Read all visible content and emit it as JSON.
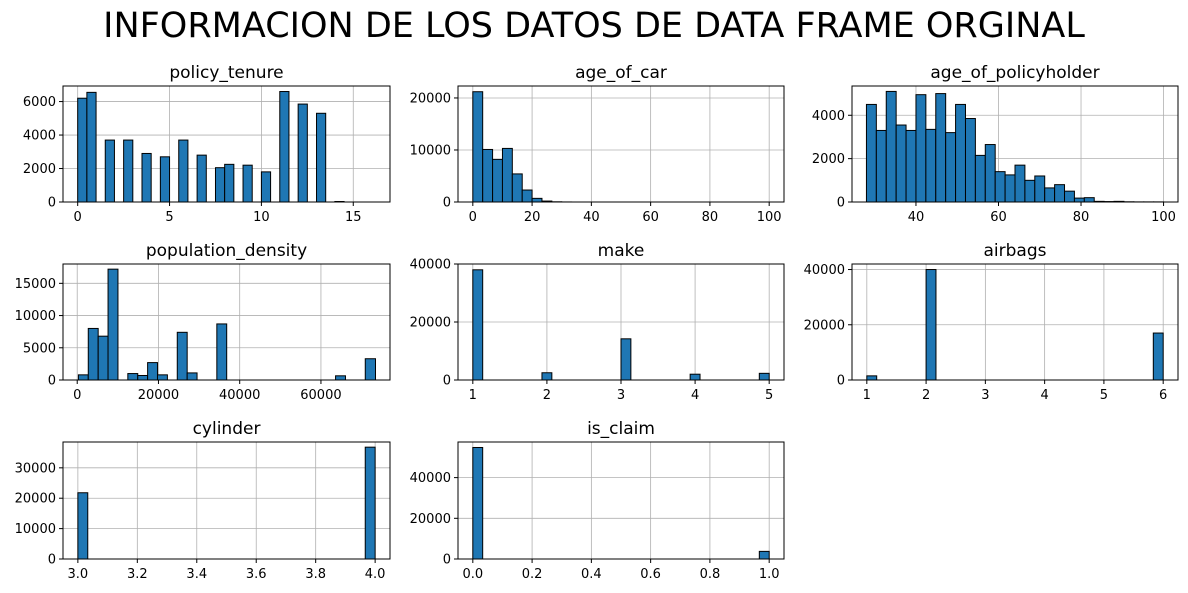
{
  "figure": {
    "title": "INFORMACION DE LOS DATOS DE DATA FRAME ORGINAL",
    "bar_color": "#1f77b4",
    "edge_color": "#000000",
    "grid_color": "#b0b0b0"
  },
  "chart_data": [
    {
      "type": "bar",
      "title": "policy_tenure",
      "xlim": [
        -0.8,
        17.0
      ],
      "ylim": [
        0,
        6930
      ],
      "xticks": [
        0,
        5,
        10,
        15
      ],
      "xtick_labels": [
        "0",
        "5",
        "10",
        "15"
      ],
      "yticks": [
        0,
        2000,
        4000,
        6000
      ],
      "ytick_labels": [
        "0",
        "2000",
        "4000",
        "6000"
      ],
      "bars": [
        {
          "x0": 0.0,
          "x1": 0.5,
          "y": 6200
        },
        {
          "x0": 0.5,
          "x1": 1.0,
          "y": 6550
        },
        {
          "x0": 1.5,
          "x1": 2.0,
          "y": 3700
        },
        {
          "x0": 2.5,
          "x1": 3.0,
          "y": 3700
        },
        {
          "x0": 3.5,
          "x1": 4.0,
          "y": 2900
        },
        {
          "x0": 4.5,
          "x1": 5.0,
          "y": 2700
        },
        {
          "x0": 5.5,
          "x1": 6.0,
          "y": 3700
        },
        {
          "x0": 6.5,
          "x1": 7.0,
          "y": 2800
        },
        {
          "x0": 7.5,
          "x1": 8.0,
          "y": 2050
        },
        {
          "x0": 8.0,
          "x1": 8.5,
          "y": 2250
        },
        {
          "x0": 9.0,
          "x1": 9.5,
          "y": 2200
        },
        {
          "x0": 10.0,
          "x1": 10.5,
          "y": 1800
        },
        {
          "x0": 11.0,
          "x1": 11.5,
          "y": 6600
        },
        {
          "x0": 12.0,
          "x1": 12.5,
          "y": 5850
        },
        {
          "x0": 13.0,
          "x1": 13.5,
          "y": 5300
        },
        {
          "x0": 14.0,
          "x1": 14.5,
          "y": 30
        }
      ]
    },
    {
      "type": "bar",
      "title": "age_of_car",
      "xlim": [
        -5,
        105
      ],
      "ylim": [
        0,
        22300
      ],
      "xticks": [
        0,
        20,
        40,
        60,
        80,
        100
      ],
      "xtick_labels": [
        "0",
        "20",
        "40",
        "60",
        "80",
        "100"
      ],
      "yticks": [
        0,
        10000,
        20000
      ],
      "ytick_labels": [
        "0",
        "10000",
        "20000"
      ],
      "bars": [
        {
          "x0": 0.0,
          "x1": 3.33,
          "y": 21200
        },
        {
          "x0": 3.33,
          "x1": 6.67,
          "y": 10100
        },
        {
          "x0": 6.67,
          "x1": 10.0,
          "y": 8200
        },
        {
          "x0": 10.0,
          "x1": 13.33,
          "y": 10300
        },
        {
          "x0": 13.33,
          "x1": 16.67,
          "y": 5400
        },
        {
          "x0": 16.67,
          "x1": 20.0,
          "y": 2300
        },
        {
          "x0": 20.0,
          "x1": 23.33,
          "y": 700
        },
        {
          "x0": 23.33,
          "x1": 26.67,
          "y": 180
        },
        {
          "x0": 26.67,
          "x1": 30.0,
          "y": 40
        },
        {
          "x0": 30.0,
          "x1": 33.33,
          "y": 10
        }
      ]
    },
    {
      "type": "bar",
      "title": "age_of_policyholder",
      "xlim": [
        24.5,
        103.5
      ],
      "ylim": [
        0,
        5350
      ],
      "xticks": [
        40,
        60,
        80,
        100
      ],
      "xtick_labels": [
        "40",
        "60",
        "80",
        "100"
      ],
      "yticks": [
        0,
        2000,
        4000
      ],
      "ytick_labels": [
        "0",
        "2000",
        "4000"
      ],
      "bars": [
        {
          "x0": 28.0,
          "x1": 30.4,
          "y": 4500
        },
        {
          "x0": 30.4,
          "x1": 32.8,
          "y": 3300
        },
        {
          "x0": 32.8,
          "x1": 35.2,
          "y": 5100
        },
        {
          "x0": 35.2,
          "x1": 37.6,
          "y": 3550
        },
        {
          "x0": 37.6,
          "x1": 40.0,
          "y": 3300
        },
        {
          "x0": 40.0,
          "x1": 42.4,
          "y": 4950
        },
        {
          "x0": 42.4,
          "x1": 44.8,
          "y": 3350
        },
        {
          "x0": 44.8,
          "x1": 47.2,
          "y": 5000
        },
        {
          "x0": 47.2,
          "x1": 49.6,
          "y": 3200
        },
        {
          "x0": 49.6,
          "x1": 52.0,
          "y": 4500
        },
        {
          "x0": 52.0,
          "x1": 54.4,
          "y": 3850
        },
        {
          "x0": 54.4,
          "x1": 56.8,
          "y": 2150
        },
        {
          "x0": 56.8,
          "x1": 59.2,
          "y": 2650
        },
        {
          "x0": 59.2,
          "x1": 61.6,
          "y": 1400
        },
        {
          "x0": 61.6,
          "x1": 64.0,
          "y": 1250
        },
        {
          "x0": 64.0,
          "x1": 66.4,
          "y": 1700
        },
        {
          "x0": 66.4,
          "x1": 68.8,
          "y": 1000
        },
        {
          "x0": 68.8,
          "x1": 71.2,
          "y": 1200
        },
        {
          "x0": 71.2,
          "x1": 73.6,
          "y": 650
        },
        {
          "x0": 73.6,
          "x1": 76.0,
          "y": 800
        },
        {
          "x0": 76.0,
          "x1": 78.4,
          "y": 500
        },
        {
          "x0": 78.4,
          "x1": 80.8,
          "y": 180
        },
        {
          "x0": 80.8,
          "x1": 83.2,
          "y": 200
        },
        {
          "x0": 83.2,
          "x1": 85.6,
          "y": 30
        },
        {
          "x0": 85.6,
          "x1": 88.0,
          "y": 20
        },
        {
          "x0": 88.0,
          "x1": 90.4,
          "y": 30
        },
        {
          "x0": 90.4,
          "x1": 92.8,
          "y": 10
        },
        {
          "x0": 92.8,
          "x1": 95.2,
          "y": 5
        },
        {
          "x0": 95.2,
          "x1": 97.6,
          "y": 5
        },
        {
          "x0": 97.6,
          "x1": 100.0,
          "y": 5
        }
      ]
    },
    {
      "type": "bar",
      "title": "population_density",
      "xlim": [
        -3500,
        77000
      ],
      "ylim": [
        0,
        18000
      ],
      "xticks": [
        0,
        20000,
        40000,
        60000
      ],
      "xtick_labels": [
        "0",
        "20000",
        "40000",
        "60000"
      ],
      "yticks": [
        0,
        5000,
        10000,
        15000
      ],
      "ytick_labels": [
        "0",
        "5000",
        "10000",
        "15000"
      ],
      "bars": [
        {
          "x0": 290,
          "x1": 2720,
          "y": 800
        },
        {
          "x0": 2720,
          "x1": 5160,
          "y": 8000
        },
        {
          "x0": 5160,
          "x1": 7590,
          "y": 6800
        },
        {
          "x0": 7590,
          "x1": 10030,
          "y": 17200
        },
        {
          "x0": 12460,
          "x1": 14900,
          "y": 1000
        },
        {
          "x0": 14900,
          "x1": 17330,
          "y": 700
        },
        {
          "x0": 17330,
          "x1": 19760,
          "y": 2700
        },
        {
          "x0": 19760,
          "x1": 22200,
          "y": 800
        },
        {
          "x0": 24630,
          "x1": 27070,
          "y": 7400
        },
        {
          "x0": 27070,
          "x1": 29500,
          "y": 1100
        },
        {
          "x0": 34370,
          "x1": 36800,
          "y": 8700
        },
        {
          "x0": 63600,
          "x1": 66040,
          "y": 650
        },
        {
          "x0": 70910,
          "x1": 73430,
          "y": 3300
        }
      ]
    },
    {
      "type": "bar",
      "title": "make",
      "xlim": [
        0.8,
        5.2
      ],
      "ylim": [
        0,
        40000
      ],
      "xticks": [
        1,
        2,
        3,
        4,
        5
      ],
      "xtick_labels": [
        "1",
        "2",
        "3",
        "4",
        "5"
      ],
      "yticks": [
        0,
        20000,
        40000
      ],
      "ytick_labels": [
        "0",
        "20000",
        "40000"
      ],
      "bars": [
        {
          "x0": 1.0,
          "x1": 1.1333,
          "y": 38000
        },
        {
          "x0": 1.9333,
          "x1": 2.0667,
          "y": 2500
        },
        {
          "x0": 3.0,
          "x1": 3.1333,
          "y": 14200
        },
        {
          "x0": 3.9333,
          "x1": 4.0667,
          "y": 2000
        },
        {
          "x0": 4.8667,
          "x1": 5.0,
          "y": 2300
        }
      ]
    },
    {
      "type": "bar",
      "title": "airbags",
      "xlim": [
        0.75,
        6.25
      ],
      "ylim": [
        0,
        42000
      ],
      "xticks": [
        1,
        2,
        3,
        4,
        5,
        6
      ],
      "xtick_labels": [
        "1",
        "2",
        "3",
        "4",
        "5",
        "6"
      ],
      "yticks": [
        0,
        20000,
        40000
      ],
      "ytick_labels": [
        "0",
        "20000",
        "40000"
      ],
      "bars": [
        {
          "x0": 1.0,
          "x1": 1.1667,
          "y": 1500
        },
        {
          "x0": 2.0,
          "x1": 2.1667,
          "y": 40000
        },
        {
          "x0": 5.8333,
          "x1": 6.0,
          "y": 17000
        }
      ]
    },
    {
      "type": "bar",
      "title": "cylinder",
      "xlim": [
        2.95,
        4.05
      ],
      "ylim": [
        0,
        38500
      ],
      "xticks": [
        3.0,
        3.2,
        3.4,
        3.6,
        3.8,
        4.0
      ],
      "xtick_labels": [
        "3.0",
        "3.2",
        "3.4",
        "3.6",
        "3.8",
        "4.0"
      ],
      "yticks": [
        0,
        10000,
        20000,
        30000
      ],
      "ytick_labels": [
        "0",
        "10000",
        "20000",
        "30000"
      ],
      "bars": [
        {
          "x0": 3.0,
          "x1": 3.0333,
          "y": 21800
        },
        {
          "x0": 3.9667,
          "x1": 4.0,
          "y": 36800
        }
      ]
    },
    {
      "type": "bar",
      "title": "is_claim",
      "xlim": [
        -0.05,
        1.05
      ],
      "ylim": [
        0,
        57500
      ],
      "xticks": [
        0.0,
        0.2,
        0.4,
        0.6,
        0.8,
        1.0
      ],
      "xtick_labels": [
        "0.0",
        "0.2",
        "0.4",
        "0.6",
        "0.8",
        "1.0"
      ],
      "yticks": [
        0,
        20000,
        40000
      ],
      "ytick_labels": [
        "0",
        "20000",
        "40000"
      ],
      "bars": [
        {
          "x0": 0.0,
          "x1": 0.0333,
          "y": 54800
        },
        {
          "x0": 0.9667,
          "x1": 1.0,
          "y": 3750
        }
      ]
    }
  ]
}
